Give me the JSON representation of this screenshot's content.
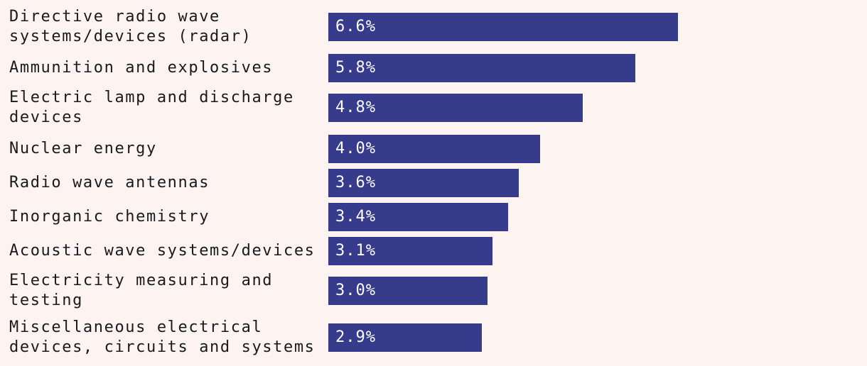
{
  "chart_data": {
    "type": "bar",
    "orientation": "horizontal",
    "categories": [
      "Directive radio wave systems/devices (radar)",
      "Ammunition and explosives",
      "Electric lamp and discharge devices",
      "Nuclear energy",
      "Radio wave antennas",
      "Inorganic chemistry",
      "Acoustic wave systems/devices",
      "Electricity measuring and testing",
      "Miscellaneous electrical devices, circuits and systems"
    ],
    "values": [
      6.6,
      5.8,
      4.8,
      4.0,
      3.6,
      3.4,
      3.1,
      3.0,
      2.9
    ],
    "value_labels": [
      "6.6%",
      "5.8%",
      "4.8%",
      "4.0%",
      "3.6%",
      "3.4%",
      "3.1%",
      "3.0%",
      "2.9%"
    ],
    "bar_color": "#373b8c",
    "value_label_color": "#ffffff",
    "background_color": "#fdf4f2",
    "title": "",
    "xlabel": "",
    "ylabel": "",
    "grid": false,
    "legend": false
  }
}
